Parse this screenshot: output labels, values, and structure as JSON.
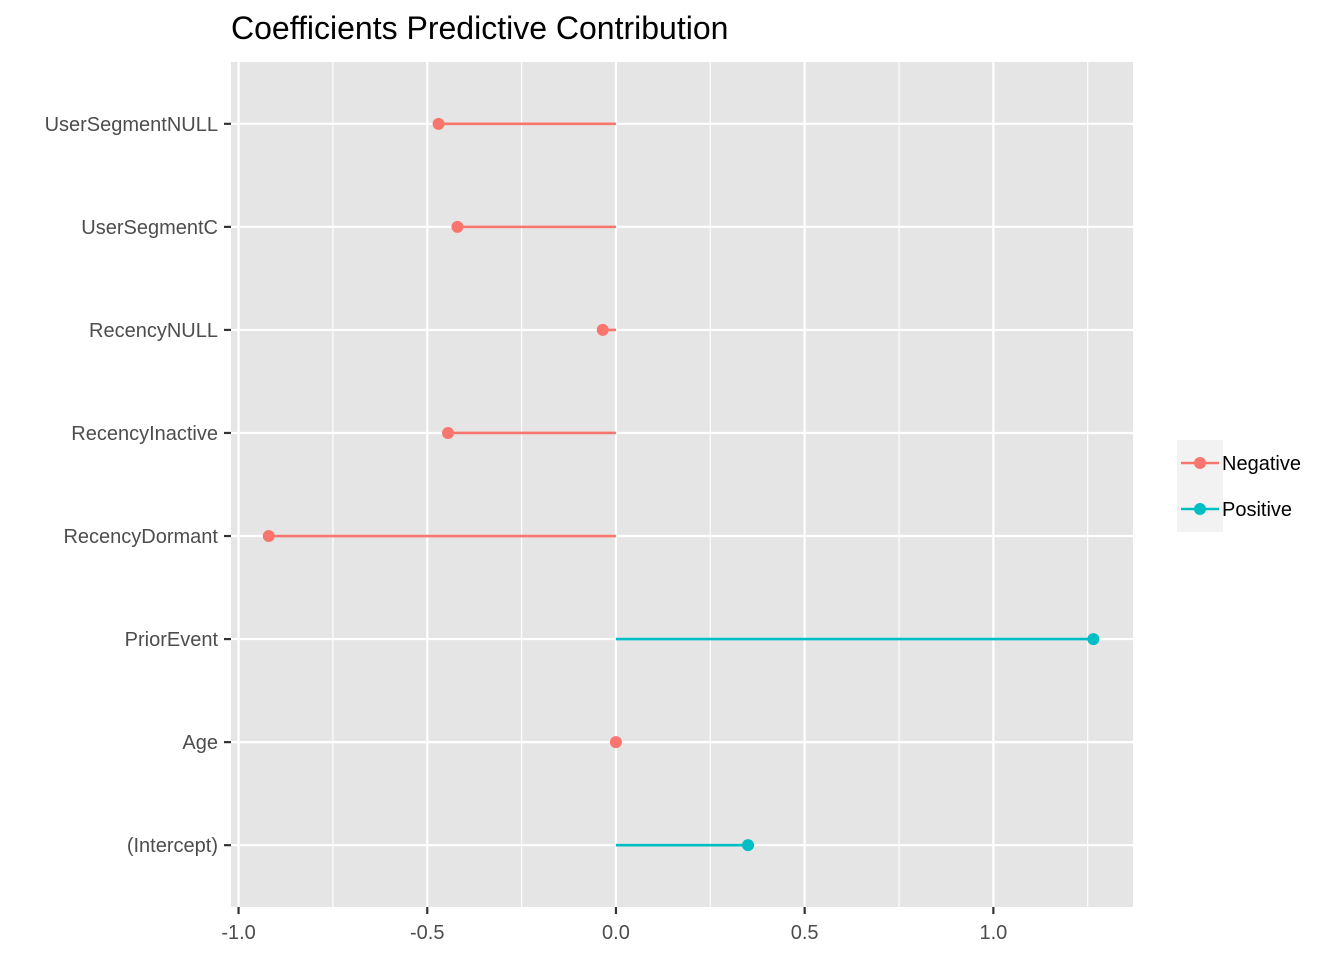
{
  "chart_data": {
    "type": "lollipop",
    "title": "Coefficients Predictive Contribution",
    "xlabel": "",
    "ylabel": "",
    "xlim": [
      -1.02,
      1.37
    ],
    "x_ticks": [
      -1.0,
      -0.5,
      0.0,
      0.5,
      1.0
    ],
    "x_tick_labels": [
      "-1.0",
      "-0.5",
      "0.0",
      "0.5",
      "1.0"
    ],
    "x_minor_ticks": [
      -0.75,
      -0.25,
      0.25,
      0.75,
      1.25
    ],
    "baseline": 0,
    "categories": [
      "(Intercept)",
      "Age",
      "PriorEvent",
      "RecencyDormant",
      "RecencyInactive",
      "RecencyNULL",
      "UserSegmentC",
      "UserSegmentNULL"
    ],
    "values": [
      0.35,
      0.0,
      1.265,
      -0.92,
      -0.445,
      -0.035,
      -0.42,
      -0.47
    ],
    "groups": [
      "Positive",
      "Negative",
      "Positive",
      "Negative",
      "Negative",
      "Negative",
      "Negative",
      "Negative"
    ],
    "series": [
      {
        "name": "Negative",
        "color": "#F8766D"
      },
      {
        "name": "Positive",
        "color": "#00BFC4"
      }
    ],
    "grid": true,
    "legend_position": "right",
    "panel_background": "#E5E5E5",
    "grid_color": "#FFFFFF"
  }
}
